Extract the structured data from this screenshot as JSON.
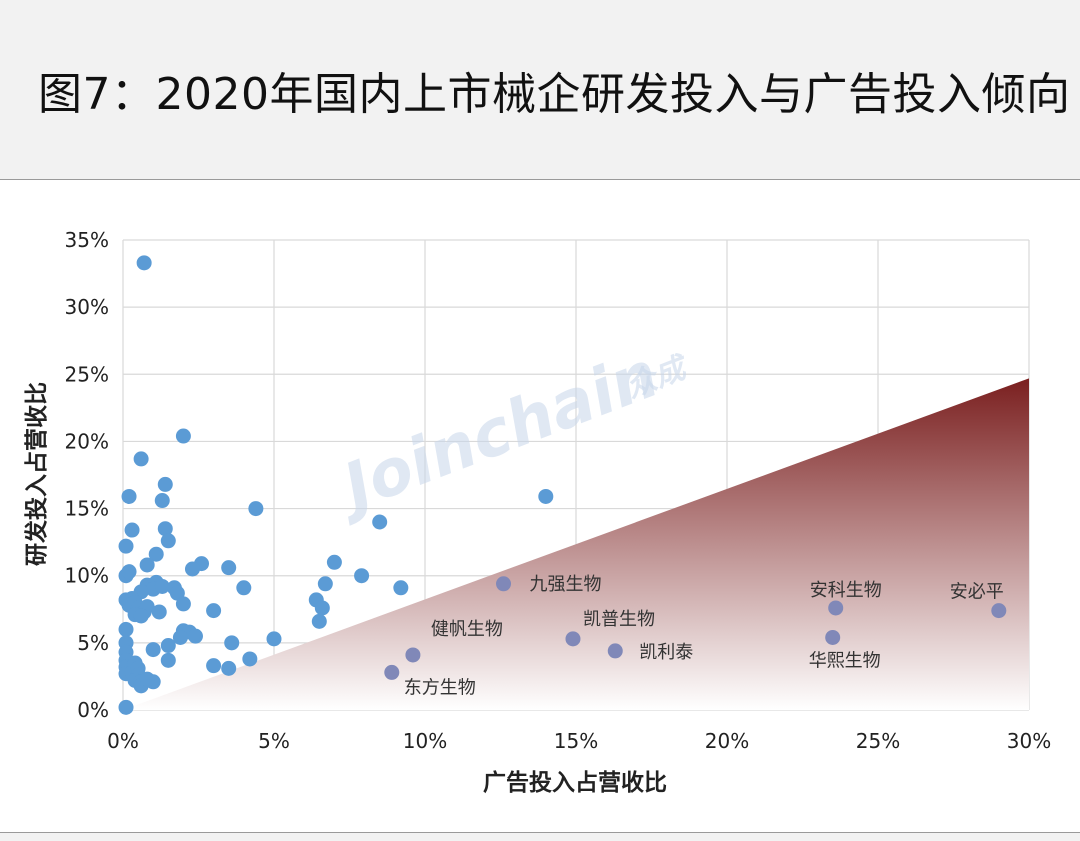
{
  "title": "图7：2020年国内上市械企研发投入与广告投入倾向",
  "watermark": {
    "main": "Joinchain",
    "sub": "众成"
  },
  "colors": {
    "point": "#5b9bd5",
    "highlight_point": "#8088b8",
    "grid": "#d9d9d9",
    "triangle_top": "#7a1f1f",
    "triangle_bottom": "#ffffff"
  },
  "chart_data": {
    "type": "scatter",
    "xlabel": "广告投入占营收比",
    "ylabel": "研发投入占营收比",
    "xlim": [
      0,
      30
    ],
    "ylim": [
      0,
      35
    ],
    "xticks": [
      0,
      5,
      10,
      15,
      20,
      25,
      30
    ],
    "yticks": [
      0,
      5,
      10,
      15,
      20,
      25,
      30,
      35
    ],
    "xtick_labels": [
      "0%",
      "5%",
      "10%",
      "15%",
      "20%",
      "25%",
      "30%"
    ],
    "ytick_labels": [
      "0%",
      "5%",
      "10%",
      "15%",
      "20%",
      "25%",
      "30%",
      "35%"
    ],
    "grid": true,
    "shaded_region": {
      "shape": "triangle",
      "vertices": [
        [
          0,
          0
        ],
        [
          30,
          0
        ],
        [
          30,
          24.7
        ]
      ]
    },
    "points": [
      [
        0.7,
        33.3
      ],
      [
        2.0,
        20.4
      ],
      [
        0.6,
        18.7
      ],
      [
        0.2,
        15.9
      ],
      [
        1.4,
        16.8
      ],
      [
        1.3,
        15.6
      ],
      [
        4.4,
        15.0
      ],
      [
        0.3,
        13.4
      ],
      [
        1.4,
        13.5
      ],
      [
        1.5,
        12.6
      ],
      [
        0.1,
        12.2
      ],
      [
        1.1,
        11.6
      ],
      [
        2.6,
        10.9
      ],
      [
        2.3,
        10.5
      ],
      [
        0.1,
        10.0
      ],
      [
        0.2,
        10.3
      ],
      [
        0.8,
        10.8
      ],
      [
        3.5,
        10.6
      ],
      [
        0.8,
        9.3
      ],
      [
        1.1,
        9.5
      ],
      [
        1.0,
        9.0
      ],
      [
        1.3,
        9.2
      ],
      [
        1.7,
        9.1
      ],
      [
        1.8,
        8.7
      ],
      [
        0.6,
        8.8
      ],
      [
        0.1,
        8.2
      ],
      [
        0.3,
        8.3
      ],
      [
        0.2,
        7.8
      ],
      [
        0.4,
        8.0
      ],
      [
        0.5,
        7.6
      ],
      [
        0.7,
        7.3
      ],
      [
        0.4,
        7.1
      ],
      [
        0.8,
        7.7
      ],
      [
        0.6,
        7.0
      ],
      [
        1.2,
        7.3
      ],
      [
        2.0,
        7.9
      ],
      [
        4.0,
        9.1
      ],
      [
        3.0,
        7.4
      ],
      [
        0.1,
        6.0
      ],
      [
        2.0,
        5.9
      ],
      [
        2.2,
        5.8
      ],
      [
        2.4,
        5.5
      ],
      [
        1.9,
        5.4
      ],
      [
        1.5,
        4.8
      ],
      [
        1.0,
        4.5
      ],
      [
        3.6,
        5.0
      ],
      [
        5.0,
        5.3
      ],
      [
        6.4,
        8.2
      ],
      [
        6.6,
        7.6
      ],
      [
        6.5,
        6.6
      ],
      [
        6.7,
        9.4
      ],
      [
        7.0,
        11.0
      ],
      [
        7.9,
        10.0
      ],
      [
        8.5,
        14.0
      ],
      [
        9.2,
        9.1
      ],
      [
        14.0,
        15.9
      ],
      [
        4.2,
        3.8
      ],
      [
        3.0,
        3.3
      ],
      [
        3.5,
        3.1
      ],
      [
        1.5,
        3.7
      ],
      [
        0.1,
        5.0
      ],
      [
        0.1,
        4.3
      ],
      [
        0.1,
        3.7
      ],
      [
        0.1,
        3.2
      ],
      [
        0.1,
        2.7
      ],
      [
        0.3,
        2.8
      ],
      [
        0.4,
        3.5
      ],
      [
        0.5,
        3.1
      ],
      [
        0.5,
        2.6
      ],
      [
        0.4,
        2.2
      ],
      [
        0.6,
        2.1
      ],
      [
        0.6,
        1.8
      ],
      [
        1.0,
        2.1
      ],
      [
        0.8,
        2.3
      ],
      [
        0.1,
        0.2
      ]
    ],
    "labeled_points": [
      {
        "name": "九强生物",
        "x": 12.6,
        "y": 9.4
      },
      {
        "name": "凯普生物",
        "x": 14.9,
        "y": 5.3
      },
      {
        "name": "健帆生物",
        "x": 9.6,
        "y": 4.1
      },
      {
        "name": "东方生物",
        "x": 8.9,
        "y": 2.8
      },
      {
        "name": "凯利泰",
        "x": 16.3,
        "y": 4.4
      },
      {
        "name": "安科生物",
        "x": 23.6,
        "y": 7.6
      },
      {
        "name": "华熙生物",
        "x": 23.5,
        "y": 5.4
      },
      {
        "name": "安必平",
        "x": 29.0,
        "y": 7.4
      }
    ]
  }
}
